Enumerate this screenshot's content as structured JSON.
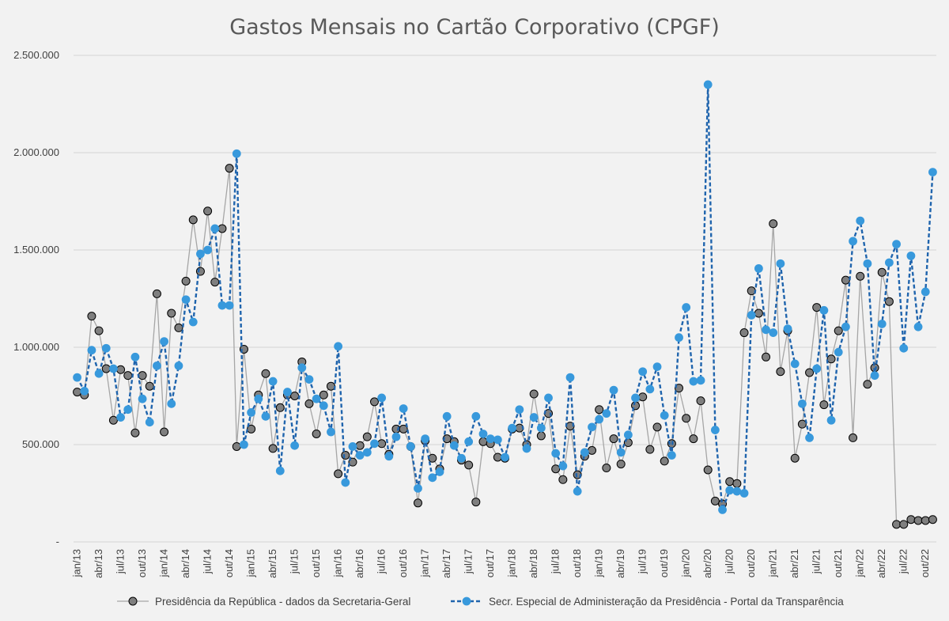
{
  "chart_data": {
    "type": "line",
    "title": "Gastos Mensais no Cartão Corporativo (CPGF)",
    "xlabel": "",
    "ylabel": "",
    "ylim": [
      0,
      2500000
    ],
    "y_ticks": [
      {
        "value": 0,
        "label": "-"
      },
      {
        "value": 500000,
        "label": "500.000"
      },
      {
        "value": 1000000,
        "label": "1.000.000"
      },
      {
        "value": 1500000,
        "label": "1.500.000"
      },
      {
        "value": 2000000,
        "label": "2.000.000"
      },
      {
        "value": 2500000,
        "label": "2.500.000"
      }
    ],
    "x_tick_labels": [
      "jan/13",
      "abr/13",
      "jul/13",
      "out/13",
      "jan/14",
      "abr/14",
      "jul/14",
      "out/14",
      "jan/15",
      "abr/15",
      "jul/15",
      "out/15",
      "jan/16",
      "abr/16",
      "jul/16",
      "out/16",
      "jan/17",
      "abr/17",
      "jul/17",
      "out/17",
      "jan/18",
      "abr/18",
      "jul/18",
      "out/18",
      "jan/19",
      "abr/19",
      "jul/19",
      "out/19",
      "jan/20",
      "abr/20",
      "jul/20",
      "out/20",
      "jan/21",
      "abr/21",
      "jul/21",
      "out/21",
      "jan/22",
      "abr/22",
      "jul/22",
      "out/22"
    ],
    "start_month": "jan/13",
    "legend_position": "bottom",
    "grid": true,
    "series": [
      {
        "name": "Presidência da República - dados da Secretaria-Geral",
        "color": "#a6a6a6",
        "marker_fill": "#7f7f7f",
        "marker_stroke": "#000000",
        "line_style": "solid",
        "values": [
          770000,
          755000,
          1160000,
          1085000,
          890000,
          625000,
          885000,
          855000,
          560000,
          855000,
          800000,
          1275000,
          565000,
          1175000,
          1100000,
          1340000,
          1655000,
          1390000,
          1700000,
          1335000,
          1610000,
          1920000,
          490000,
          990000,
          580000,
          755000,
          865000,
          480000,
          690000,
          755000,
          750000,
          925000,
          710000,
          555000,
          755000,
          800000,
          350000,
          445000,
          410000,
          495000,
          540000,
          720000,
          505000,
          450000,
          580000,
          580000,
          490000,
          200000,
          520000,
          430000,
          375000,
          530000,
          515000,
          420000,
          395000,
          205000,
          515000,
          505000,
          435000,
          430000,
          580000,
          585000,
          500000,
          760000,
          545000,
          660000,
          375000,
          320000,
          595000,
          345000,
          440000,
          470000,
          680000,
          380000,
          530000,
          400000,
          510000,
          700000,
          745000,
          475000,
          590000,
          415000,
          505000,
          790000,
          635000,
          530000,
          725000,
          370000,
          210000,
          195000,
          310000,
          300000,
          1075000,
          1290000,
          1175000,
          950000,
          1635000,
          875000,
          1085000,
          430000,
          605000,
          870000,
          1205000,
          705000,
          940000,
          1085000,
          1345000,
          535000,
          1365000,
          810000,
          895000,
          1385000,
          1235000,
          90000,
          90000,
          115000,
          110000,
          110000,
          115000
        ]
      },
      {
        "name": "Secr. Especial de Administeração da Presidência - Portal da Transparência",
        "color": "#1f64ad",
        "marker_fill": "#3899dc",
        "marker_stroke": "#3899dc",
        "line_style": "dashed",
        "values": [
          845000,
          775000,
          985000,
          865000,
          995000,
          890000,
          640000,
          680000,
          950000,
          735000,
          615000,
          905000,
          1030000,
          710000,
          905000,
          1245000,
          1130000,
          1480000,
          1500000,
          1610000,
          1215000,
          1215000,
          1995000,
          500000,
          665000,
          735000,
          645000,
          825000,
          365000,
          770000,
          495000,
          895000,
          835000,
          735000,
          700000,
          565000,
          1005000,
          305000,
          490000,
          445000,
          460000,
          505000,
          740000,
          440000,
          540000,
          685000,
          490000,
          275000,
          530000,
          330000,
          360000,
          645000,
          495000,
          430000,
          515000,
          645000,
          555000,
          530000,
          525000,
          435000,
          585000,
          680000,
          480000,
          640000,
          585000,
          740000,
          455000,
          390000,
          845000,
          260000,
          460000,
          590000,
          630000,
          660000,
          780000,
          460000,
          550000,
          740000,
          875000,
          785000,
          900000,
          650000,
          445000,
          1050000,
          1205000,
          825000,
          830000,
          2350000,
          575000,
          165000,
          265000,
          260000,
          250000,
          1165000,
          1405000,
          1090000,
          1075000,
          1430000,
          1095000,
          915000,
          710000,
          535000,
          890000,
          1190000,
          625000,
          975000,
          1105000,
          1545000,
          1650000,
          1430000,
          855000,
          1120000,
          1435000,
          1530000,
          995000,
          1470000,
          1105000,
          1285000,
          1900000
        ]
      }
    ]
  }
}
